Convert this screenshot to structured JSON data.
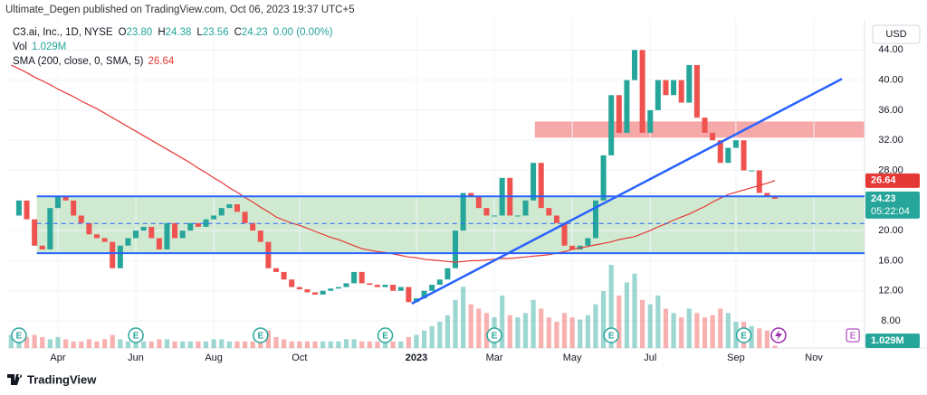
{
  "chart_data": {
    "type": "candlestick",
    "published": "Ultimate_Degen published on TradingView.com, Oct 06, 2023 19:37 UTC+5",
    "symbol": "C3.ai, Inc., 1D, NYSE",
    "ohlc": [
      {
        "label": "O",
        "value": "23.80"
      },
      {
        "label": "H",
        "value": "24.38"
      },
      {
        "label": "L",
        "value": "23.56"
      },
      {
        "label": "C",
        "value": "24.23"
      }
    ],
    "change": "0.00 (0.00%)",
    "currency": "USD",
    "countdown": "05:22:04",
    "brand": "TradingView",
    "up_color": "#26a69a",
    "down_color": "#ef5350",
    "categories": [
      null,
      null,
      null,
      null,
      null,
      null,
      "Apr",
      null,
      null,
      null,
      null,
      null,
      null,
      null,
      null,
      null,
      "Jun",
      null,
      null,
      null,
      null,
      null,
      null,
      null,
      null,
      null,
      "Aug",
      null,
      null,
      null,
      null,
      null,
      null,
      null,
      null,
      null,
      null,
      "Oct",
      null,
      null,
      null,
      null,
      null,
      null,
      null,
      null,
      null,
      null,
      null,
      null,
      null,
      null,
      "2023",
      null,
      null,
      null,
      null,
      null,
      null,
      null,
      null,
      null,
      "Mar",
      null,
      null,
      null,
      null,
      null,
      null,
      null,
      null,
      null,
      "May",
      null,
      null,
      null,
      null,
      null,
      null,
      null,
      null,
      null,
      "Jul",
      null,
      null,
      null,
      null,
      null,
      null,
      null,
      null,
      null,
      null,
      "Sep",
      null,
      null,
      null,
      null,
      null,
      null,
      null,
      null,
      null,
      "Nov",
      null,
      null,
      null,
      null,
      null,
      null
    ],
    "values": [
      22,
      24,
      21.5,
      18,
      17.5,
      23,
      24.5,
      24,
      22,
      21,
      19.5,
      19,
      18.5,
      15,
      18,
      19,
      20,
      20.5,
      19,
      17.5,
      21,
      19,
      20,
      21,
      20.5,
      21.5,
      22,
      23,
      23.5,
      22.5,
      21,
      20,
      18.5,
      15,
      14.5,
      13.5,
      12.5,
      12.2,
      11.8,
      11.5,
      12,
      12.3,
      12.5,
      13,
      14.5,
      13,
      12.8,
      12.5,
      12.8,
      12,
      12.5,
      10.5,
      11,
      12,
      12.8,
      13.5,
      15,
      20,
      25,
      24.5,
      23,
      22,
      22,
      27,
      22,
      22,
      24,
      29,
      23,
      22,
      21,
      18,
      17.5,
      18,
      19,
      24,
      30,
      38,
      33,
      40,
      44,
      33,
      36,
      40,
      38,
      40,
      37,
      42,
      35,
      33,
      32,
      29,
      31,
      32,
      28,
      28,
      25,
      24.5,
      24.23,
      null,
      null,
      null,
      null,
      null,
      null,
      null,
      null,
      null,
      null,
      null
    ],
    "sma": {
      "name": "SMA (200, close, 0, SMA, 5)",
      "color": "#e53935",
      "values": [
        42,
        41.5,
        41,
        40.4,
        39.9,
        39.4,
        38.8,
        38.3,
        37.8,
        37.2,
        36.7,
        36.2,
        35.6,
        35,
        34.4,
        33.8,
        33.2,
        32.6,
        32,
        31.4,
        30.8,
        30.2,
        29.6,
        29,
        28.3,
        27.7,
        27,
        26.4,
        25.7,
        25.1,
        24.4,
        23.8,
        23.1,
        22.5,
        21.8,
        21.4,
        21,
        20.7,
        20.3,
        19.9,
        19.5,
        19.1,
        18.8,
        18.4,
        18,
        17.6,
        17.4,
        17.2,
        17.1,
        16.9,
        16.7,
        16.5,
        16.4,
        16.2,
        16.1,
        16,
        15.9,
        15.8,
        15.9,
        16,
        16,
        16.1,
        16.2,
        16.3,
        16.3,
        16.4,
        16.5,
        16.6,
        16.7,
        16.8,
        17,
        17.2,
        17.5,
        17.7,
        17.9,
        18.1,
        18.3,
        18.5,
        18.8,
        19,
        19.2,
        19.6,
        20,
        20.5,
        20.9,
        21.4,
        21.8,
        22.2,
        22.7,
        23.2,
        23.8,
        24.3,
        24.8,
        25.1,
        25.4,
        25.7,
        26,
        26.3,
        26.64,
        null,
        null,
        null,
        null,
        null,
        null,
        null,
        null,
        null,
        null,
        null
      ]
    },
    "volume": {
      "name": "Vol",
      "last_value_label": "1.029M",
      "vlim": [
        0,
        150
      ],
      "values": [
        6,
        9,
        5,
        6,
        5,
        4,
        5,
        4,
        3,
        3,
        4,
        3,
        4,
        6,
        4,
        3,
        3,
        3,
        3,
        4,
        4,
        3,
        3,
        3,
        3,
        3,
        4,
        4,
        3,
        3,
        3,
        3,
        4,
        8,
        5,
        4,
        3,
        3,
        3,
        3,
        3,
        3,
        3,
        4,
        4,
        3,
        3,
        3,
        3,
        3,
        3,
        5,
        6,
        8,
        10,
        12,
        15,
        22,
        28,
        20,
        18,
        16,
        14,
        24,
        15,
        14,
        16,
        22,
        18,
        14,
        12,
        16,
        14,
        13,
        15,
        20,
        26,
        38,
        24,
        30,
        34,
        22,
        20,
        24,
        18,
        16,
        14,
        18,
        16,
        14,
        15,
        18,
        16,
        12,
        12,
        10,
        9,
        8,
        1.029,
        null,
        null,
        null,
        null,
        null,
        null,
        null,
        null,
        null,
        null,
        null
      ]
    },
    "ylim": [
      4.4,
      48
    ],
    "yticks": [
      {
        "value": 8,
        "label": "8.00"
      },
      {
        "value": 12,
        "label": "12.00"
      },
      {
        "value": 16,
        "label": "16.00"
      },
      {
        "value": 20,
        "label": "20.00"
      },
      {
        "value": 28,
        "label": "28.00"
      },
      {
        "value": 32,
        "label": "32.00"
      },
      {
        "value": 36,
        "label": "36.00"
      },
      {
        "value": 40,
        "label": "40.00"
      },
      {
        "value": 44,
        "label": "44.00"
      }
    ],
    "grid": true,
    "drawings": {
      "zones": [
        {
          "low": 17,
          "high": 24.55,
          "from": 3.3,
          "color": "#c8e6c9"
        },
        {
          "low": 32.35,
          "high": 34.5,
          "from": 67.2,
          "color": "#f59a9a"
        }
      ],
      "hlines": [
        {
          "value": 24.55,
          "from": 3.3,
          "color": "#2962ff",
          "dashed": false
        },
        {
          "value": 17,
          "from": 3.3,
          "color": "#2962ff",
          "dashed": false
        },
        {
          "value": 20.95,
          "from": 3.3,
          "color": "#2962ff",
          "dashed": true
        }
      ],
      "trendline": {
        "from": [
          51.4,
          10.3
        ],
        "to": [
          106.6,
          40.16
        ],
        "color": "#2962ff"
      }
    },
    "events": {
      "label": "E",
      "at": [
        1,
        16,
        32,
        48,
        62,
        77,
        94
      ],
      "upcoming_at": 108
    }
  }
}
